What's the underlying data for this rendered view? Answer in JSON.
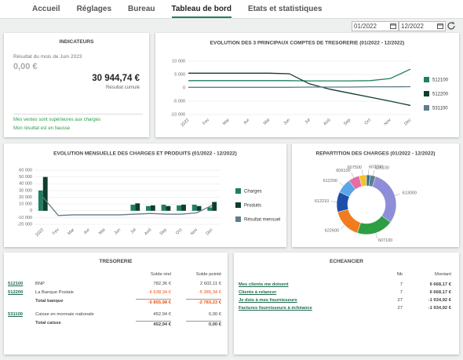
{
  "nav": {
    "tabs": [
      "Accueil",
      "Réglages",
      "Bureau",
      "Tableau de bord",
      "Etats et statistiques"
    ],
    "active": 3
  },
  "filters": {
    "start": "01/2022",
    "end": "12/2022"
  },
  "indicators": {
    "title": "INDICATEURS",
    "month_label": "Résultat du mois de Juin 2023",
    "month_value": "0,00 €",
    "cumulative_value": "30 944,74 €",
    "cumulative_label": "Résultat cumulé",
    "messages": [
      "Mes ventes sont supérieures aux charges",
      "Mon résultat est en hausse"
    ]
  },
  "chart_data": [
    {
      "type": "line",
      "title": "EVOLUTION DES 3 PRINCIPAUX COMPTES DE TRESORERIE (01/2022 - 12/2022)",
      "categories": [
        "2022",
        "Fev",
        "Mar",
        "Avr",
        "Mai",
        "Jun",
        "Jul",
        "Aoû",
        "Sep",
        "Oct",
        "Nov",
        "Dec"
      ],
      "series": [
        {
          "name": "512100",
          "color": "#1f8060",
          "values": [
            2700,
            2700,
            2700,
            2700,
            2700,
            2700,
            2600,
            2600,
            2600,
            2700,
            3500,
            7000
          ]
        },
        {
          "name": "512200",
          "color": "#0f3d2e",
          "values": [
            5500,
            5500,
            5500,
            5500,
            5500,
            5300,
            1500,
            -500,
            -2000,
            -3500,
            -5000,
            -6600
          ]
        },
        {
          "name": "531100",
          "color": "#5f7d8c",
          "values": [
            200,
            200,
            200,
            200,
            200,
            200,
            300,
            300,
            300,
            400,
            400,
            450
          ]
        }
      ],
      "ylim": [
        -10000,
        10000
      ],
      "yticks": [
        {
          "value": -10000,
          "label": "-10 000"
        },
        {
          "value": -5000,
          "label": "-5 000"
        },
        0,
        {
          "value": 5000,
          "label": "5 000"
        },
        {
          "value": 10000,
          "label": "10 000"
        }
      ],
      "grid": true
    },
    {
      "type": "bar",
      "title": "EVOLUTION MENSUELLE DES CHARGES ET PRODUITS (01/2022 - 12/2022)",
      "categories": [
        "2022",
        "Fev",
        "Mar",
        "Avr",
        "Mai",
        "Jun",
        "Jul",
        "Aoû",
        "Sep",
        "Oct",
        "Nov",
        "Dec"
      ],
      "series": [
        {
          "name": "Charges",
          "color": "#1f8060",
          "values": [
            30000,
            0,
            0,
            0,
            0,
            0,
            9000,
            7000,
            9000,
            8000,
            9000,
            5000
          ]
        },
        {
          "name": "Produits",
          "color": "#0f3d2e",
          "values": [
            50000,
            0,
            0,
            0,
            0,
            0,
            11000,
            8000,
            7000,
            9000,
            7000,
            13000
          ]
        },
        {
          "name": "Résultat mensuel",
          "type": "line",
          "color": "#5f7d8c",
          "values": [
            20000,
            -7000,
            -6000,
            -6000,
            -6000,
            -6000,
            -5000,
            -4000,
            -5000,
            -5000,
            -3000,
            8000
          ]
        }
      ],
      "ylim": [
        -20000,
        60000
      ],
      "yticks": [
        {
          "value": -20000,
          "label": "-20 000"
        },
        {
          "value": -10000,
          "label": "-10 000"
        },
        0,
        {
          "value": 10000,
          "label": "10 000"
        },
        {
          "value": 20000,
          "label": "20 000"
        },
        {
          "value": 30000,
          "label": "30 000"
        },
        {
          "value": 40000,
          "label": "40 000"
        },
        {
          "value": 50000,
          "label": "50 000"
        },
        {
          "value": 60000,
          "label": "60 000"
        }
      ],
      "grid": true
    },
    {
      "type": "pie",
      "title": "REPARTITION DES CHARGES (01/2022 - 12/2022)",
      "categories": [
        "607200",
        "626100",
        "613000",
        "607100",
        "622600",
        "612210",
        "612200",
        "606100",
        "607500"
      ],
      "values": [
        2,
        3,
        30,
        20,
        16,
        11,
        8,
        6,
        4
      ],
      "colors": [
        "#2a6f97",
        "#5f7d8c",
        "#8e8ed8",
        "#2e9e44",
        "#f07c1e",
        "#1f4fa8",
        "#58a6e8",
        "#e36fa5",
        "#f2c12e"
      ],
      "donut": true
    }
  ],
  "treasury": {
    "title": "TRESORERIE",
    "columns": [
      "Solde réel",
      "Solde pointé"
    ],
    "rows": [
      {
        "account": "512100",
        "label": "BNP",
        "real": "782,36 €",
        "reconciled": "2 602,11 €"
      },
      {
        "account": "512200",
        "label": "La Banque Postale",
        "real": "-6 638,34 €",
        "reconciled": "-5 385,34 €"
      },
      {
        "label": "Total banque",
        "real": "-5 855,98 €",
        "reconciled": "-2 783,23 €",
        "total": true
      },
      {
        "account": "531100",
        "label": "Caisse en monnaie nationale",
        "real": "452,94 €",
        "reconciled": "0,00 €"
      },
      {
        "label": "Total caisse",
        "real": "452,94 €",
        "reconciled": "0,00 €",
        "total": true
      }
    ]
  },
  "schedule": {
    "title": "ECHEANCIER",
    "columns": [
      "Nb",
      "Montant"
    ],
    "rows": [
      {
        "label": "Mes clients me doivent",
        "count": 7,
        "amount": "6 668,17 €"
      },
      {
        "label": "Clients à relancer",
        "count": 7,
        "amount": "6 668,17 €"
      },
      {
        "label": "Je dois à mes fournisseurs",
        "count": 27,
        "amount": "-1 934,92 €"
      },
      {
        "label": "Factures fournisseurs à échéance",
        "count": 27,
        "amount": "-1 934,92 €"
      }
    ]
  }
}
